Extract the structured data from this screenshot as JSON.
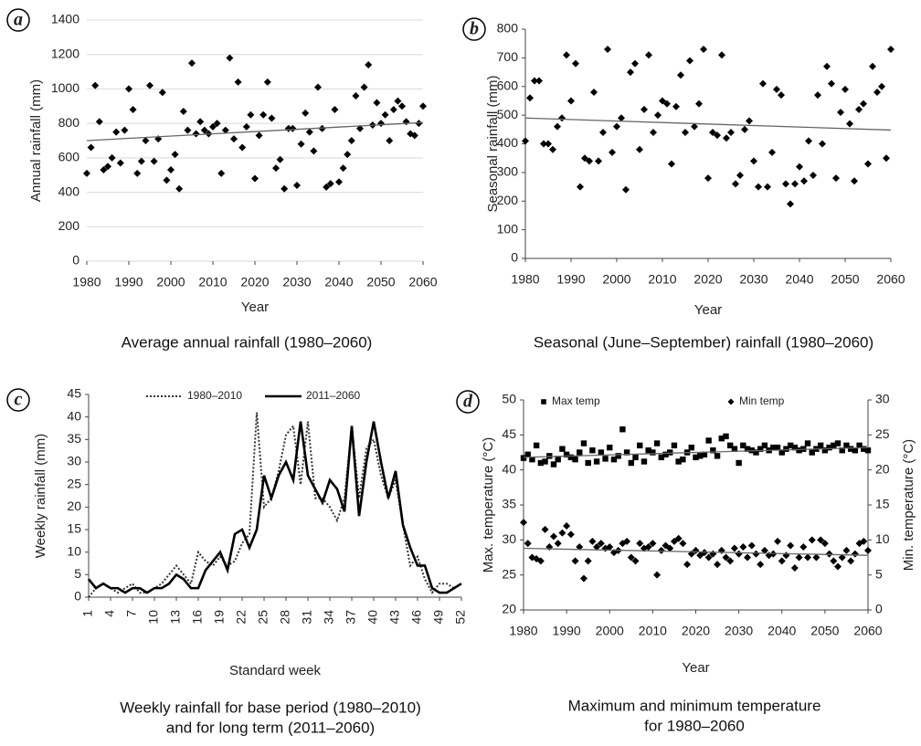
{
  "chart_data": [
    {
      "type": "scatter",
      "panel": "a",
      "caption": [
        "Average annual rainfall (1980–2060)"
      ],
      "xlabel": "Year",
      "ylabel": "Annual rainfall (mm)",
      "xlim": [
        1980,
        2060
      ],
      "xticks": [
        1980,
        1990,
        2000,
        2010,
        2020,
        2030,
        2040,
        2050,
        2060
      ],
      "ylim": [
        0,
        1400
      ],
      "yticks": [
        0,
        200,
        400,
        600,
        800,
        1000,
        1200,
        1400
      ],
      "grid": true,
      "x": [
        1980,
        1981,
        1982,
        1983,
        1984,
        1985,
        1986,
        1987,
        1988,
        1989,
        1990,
        1991,
        1992,
        1993,
        1994,
        1995,
        1996,
        1997,
        1998,
        1999,
        2000,
        2001,
        2002,
        2003,
        2004,
        2005,
        2006,
        2007,
        2008,
        2009,
        2010,
        2011,
        2012,
        2013,
        2014,
        2015,
        2016,
        2017,
        2018,
        2019,
        2020,
        2021,
        2022,
        2023,
        2024,
        2025,
        2026,
        2027,
        2028,
        2029,
        2030,
        2031,
        2032,
        2033,
        2034,
        2035,
        2036,
        2037,
        2038,
        2039,
        2040,
        2041,
        2042,
        2043,
        2044,
        2045,
        2046,
        2047,
        2048,
        2049,
        2050,
        2051,
        2052,
        2053,
        2054,
        2055,
        2056,
        2057,
        2058,
        2059,
        2060
      ],
      "series": [
        {
          "color": "#000000",
          "marker": "diamond",
          "values": [
            510,
            660,
            1020,
            810,
            530,
            550,
            600,
            750,
            570,
            760,
            1000,
            880,
            510,
            580,
            700,
            1020,
            580,
            710,
            980,
            470,
            530,
            620,
            420,
            870,
            760,
            1150,
            740,
            810,
            760,
            740,
            780,
            800,
            510,
            760,
            1180,
            710,
            1040,
            660,
            780,
            850,
            480,
            730,
            850,
            1040,
            830,
            540,
            590,
            420,
            770,
            770,
            440,
            680,
            860,
            750,
            640,
            1010,
            770,
            430,
            450,
            880,
            460,
            540,
            620,
            700,
            960,
            770,
            1010,
            1140,
            790,
            920,
            800,
            850,
            700,
            880,
            930,
            900,
            810,
            740,
            730,
            800,
            900
          ],
          "trend": {
            "x": [
              1980,
              2060
            ],
            "values": [
              700,
              805
            ]
          }
        }
      ]
    },
    {
      "type": "scatter",
      "panel": "b",
      "caption": [
        "Seasonal (June–September) rainfall (1980–2060)"
      ],
      "xlabel": "Year",
      "ylabel": "Seasonal rainfall (mm)",
      "xlim": [
        1980,
        2060
      ],
      "xticks": [
        1980,
        1990,
        2000,
        2010,
        2020,
        2030,
        2040,
        2050,
        2060
      ],
      "ylim": [
        0,
        800
      ],
      "yticks": [
        0,
        100,
        200,
        300,
        400,
        500,
        600,
        700,
        800
      ],
      "grid": false,
      "x": [
        1980,
        1981,
        1982,
        1983,
        1984,
        1985,
        1986,
        1987,
        1988,
        1989,
        1990,
        1991,
        1992,
        1993,
        1994,
        1995,
        1996,
        1997,
        1998,
        1999,
        2000,
        2001,
        2002,
        2003,
        2004,
        2005,
        2006,
        2007,
        2008,
        2009,
        2010,
        2011,
        2012,
        2013,
        2014,
        2015,
        2016,
        2017,
        2018,
        2019,
        2020,
        2021,
        2022,
        2023,
        2024,
        2025,
        2026,
        2027,
        2028,
        2029,
        2030,
        2031,
        2032,
        2033,
        2034,
        2035,
        2036,
        2037,
        2038,
        2039,
        2040,
        2041,
        2042,
        2043,
        2044,
        2045,
        2046,
        2047,
        2048,
        2049,
        2050,
        2051,
        2052,
        2053,
        2054,
        2055,
        2056,
        2057,
        2058,
        2059,
        2060
      ],
      "series": [
        {
          "color": "#000000",
          "marker": "diamond",
          "values": [
            410,
            560,
            620,
            620,
            400,
            400,
            380,
            460,
            490,
            710,
            550,
            680,
            250,
            350,
            340,
            580,
            340,
            440,
            730,
            370,
            460,
            490,
            240,
            650,
            680,
            380,
            520,
            710,
            440,
            500,
            550,
            540,
            330,
            530,
            640,
            440,
            690,
            460,
            540,
            730,
            280,
            440,
            430,
            710,
            420,
            440,
            260,
            290,
            450,
            480,
            340,
            250,
            610,
            250,
            370,
            590,
            570,
            260,
            190,
            260,
            320,
            270,
            410,
            290,
            570,
            400,
            670,
            610,
            280,
            510,
            590,
            470,
            270,
            520,
            540,
            330,
            670,
            580,
            600,
            350,
            730
          ],
          "trend": {
            "x": [
              1980,
              2060
            ],
            "values": [
              490,
              448
            ]
          }
        }
      ]
    },
    {
      "type": "line",
      "panel": "c",
      "caption": [
        "Weekly rainfall for base period (1980–2010)",
        "and for long term (2011–2060)"
      ],
      "xlabel": "Standard week",
      "ylabel": "Weekly rainfall (mm)",
      "xlim": [
        1,
        52
      ],
      "xticks": [
        1,
        4,
        7,
        10,
        13,
        16,
        19,
        22,
        25,
        28,
        31,
        34,
        37,
        40,
        43,
        46,
        49,
        52
      ],
      "ylim": [
        0,
        45
      ],
      "yticks": [
        0,
        5,
        10,
        15,
        20,
        25,
        30,
        35,
        40,
        45
      ],
      "grid": false,
      "x": [
        1,
        2,
        3,
        4,
        5,
        6,
        7,
        8,
        9,
        10,
        11,
        12,
        13,
        14,
        15,
        16,
        17,
        18,
        19,
        20,
        21,
        22,
        23,
        24,
        25,
        26,
        27,
        28,
        29,
        30,
        31,
        32,
        33,
        34,
        35,
        36,
        37,
        38,
        39,
        40,
        41,
        42,
        43,
        44,
        45,
        46,
        47,
        48,
        49,
        50,
        51,
        52
      ],
      "series": [
        {
          "name": "1980–2010",
          "color": "#333333",
          "style": "dotted",
          "values": [
            0,
            2,
            3,
            2,
            1,
            2,
            3,
            1,
            1,
            2,
            3,
            5,
            7,
            5,
            3,
            10,
            8,
            7,
            9,
            7,
            8,
            12,
            14,
            41,
            20,
            22,
            28,
            36,
            38,
            25,
            39,
            22,
            22,
            20,
            17,
            22,
            38,
            22,
            33,
            35,
            27,
            22,
            26,
            16,
            7,
            9,
            4,
            1,
            3,
            3,
            2,
            3
          ]
        },
        {
          "name": "2011–2060",
          "color": "#000000",
          "style": "solid",
          "values": [
            4,
            2,
            3,
            2,
            2,
            1,
            2,
            2,
            1,
            2,
            2,
            3,
            5,
            4,
            2,
            2,
            6,
            8,
            10,
            6,
            14,
            15,
            11,
            15,
            27,
            22,
            27,
            30,
            26,
            39,
            27,
            24,
            21,
            26,
            24,
            19,
            38,
            18,
            30,
            39,
            30,
            22,
            28,
            16,
            11,
            7,
            7,
            2,
            1,
            1,
            2,
            3
          ]
        }
      ]
    },
    {
      "type": "scatter",
      "panel": "d",
      "caption": [
        "Maximum and minimum temperature",
        "for 1980–2060"
      ],
      "xlabel": "Year",
      "ylabel": "Max. temperature (°C)",
      "y2label": "Min. temperature (°C)",
      "xlim": [
        1980,
        2060
      ],
      "xticks": [
        1980,
        1990,
        2000,
        2010,
        2020,
        2030,
        2040,
        2050,
        2060
      ],
      "ylim": [
        20,
        50
      ],
      "yticks": [
        20,
        25,
        30,
        35,
        40,
        45,
        50
      ],
      "y2lim": [
        0,
        30
      ],
      "y2ticks": [
        0,
        5,
        10,
        15,
        20,
        25,
        30
      ],
      "grid": false,
      "x": [
        1980,
        1981,
        1982,
        1983,
        1984,
        1985,
        1986,
        1987,
        1988,
        1989,
        1990,
        1991,
        1992,
        1993,
        1994,
        1995,
        1996,
        1997,
        1998,
        1999,
        2000,
        2001,
        2002,
        2003,
        2004,
        2005,
        2006,
        2007,
        2008,
        2009,
        2010,
        2011,
        2012,
        2013,
        2014,
        2015,
        2016,
        2017,
        2018,
        2019,
        2020,
        2021,
        2022,
        2023,
        2024,
        2025,
        2026,
        2027,
        2028,
        2029,
        2030,
        2031,
        2032,
        2033,
        2034,
        2035,
        2036,
        2037,
        2038,
        2039,
        2040,
        2041,
        2042,
        2043,
        2044,
        2045,
        2046,
        2047,
        2048,
        2049,
        2050,
        2051,
        2052,
        2053,
        2054,
        2055,
        2056,
        2057,
        2058,
        2059,
        2060
      ],
      "series": [
        {
          "name": "Max temp",
          "color": "#000000",
          "marker": "square",
          "values": [
            41.7,
            42.2,
            41.5,
            43.5,
            41.0,
            41.2,
            42.0,
            40.8,
            41.5,
            43.0,
            42.2,
            41.8,
            41.5,
            42.5,
            43.8,
            41.0,
            42.8,
            41.2,
            42.5,
            41.6,
            43.2,
            41.5,
            42.0,
            45.8,
            42.5,
            41.0,
            41.8,
            43.5,
            41.2,
            42.8,
            42.5,
            43.8,
            41.8,
            42.2,
            42.5,
            43.5,
            41.2,
            41.5,
            42.5,
            43.2,
            41.8,
            42.0,
            42.2,
            44.2,
            42.8,
            42.0,
            44.5,
            44.8,
            43.5,
            43.0,
            41.0,
            43.5,
            43.0,
            42.8,
            42.5,
            43.0,
            43.5,
            42.8,
            43.2,
            43.2,
            42.5,
            43.0,
            43.5,
            43.2,
            42.8,
            43.0,
            43.8,
            42.5,
            43.0,
            43.5,
            42.8,
            43.2,
            43.5,
            43.8,
            42.8,
            43.5,
            43.0,
            42.8,
            43.5,
            43.0,
            42.8
          ],
          "trend": {
            "x": [
              1980,
              2060
            ],
            "values": [
              41.8,
              43.2
            ]
          }
        },
        {
          "name": "Min temp",
          "color": "#000000",
          "marker": "diamond",
          "axis": "y2",
          "values": [
            12.5,
            9.5,
            7.5,
            7.3,
            7.0,
            11.5,
            9.0,
            10.5,
            9.5,
            11.0,
            12.0,
            10.8,
            7.0,
            9.0,
            4.5,
            7.0,
            9.8,
            9.0,
            9.5,
            8.8,
            9.0,
            8.2,
            8.5,
            9.5,
            9.8,
            7.5,
            7.0,
            9.5,
            8.8,
            9.0,
            9.5,
            5.0,
            8.5,
            9.2,
            8.8,
            9.8,
            10.2,
            9.5,
            6.5,
            8.0,
            8.5,
            7.8,
            8.2,
            7.5,
            8.0,
            6.5,
            8.5,
            7.5,
            7.0,
            8.8,
            8.0,
            9.0,
            7.5,
            9.2,
            8.0,
            6.5,
            8.5,
            7.8,
            8.0,
            9.8,
            7.0,
            7.8,
            9.2,
            6.0,
            7.5,
            9.0,
            7.5,
            10.0,
            7.5,
            10.0,
            9.5,
            8.0,
            7.0,
            6.2,
            7.5,
            8.5,
            7.0,
            8.0,
            9.5,
            9.8,
            8.5
          ],
          "trend": {
            "x": [
              1980,
              2060
            ],
            "values": [
              8.8,
              7.8
            ]
          }
        }
      ]
    }
  ]
}
